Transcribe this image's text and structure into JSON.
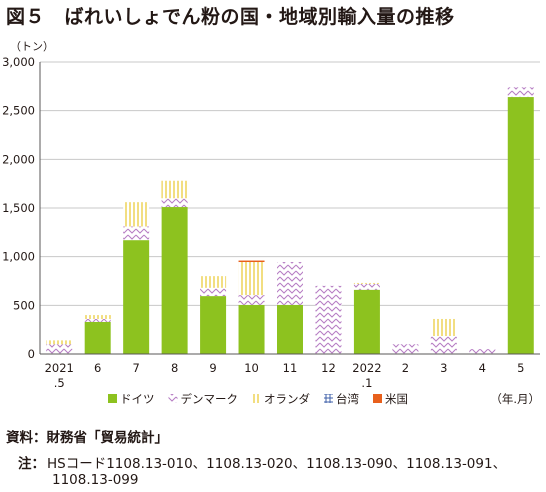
{
  "title": "図５　ばれいしょでん粉の国・地域別輸入量の推移",
  "colors": {
    "germany": "#8dc21f",
    "denmark": "#b57cc3",
    "netherlands": "#e8c21a",
    "taiwan": "#3d5fa8",
    "usa": "#e8601c",
    "grid": "#c8c8c8",
    "axis": "#595757"
  },
  "chart_data": {
    "type": "bar",
    "stacked": true,
    "unit_label": "（トン）",
    "x_unit_label": "（年.月）",
    "categories": [
      [
        "2021",
        ".5"
      ],
      [
        "6"
      ],
      [
        "7"
      ],
      [
        "8"
      ],
      [
        "9"
      ],
      [
        "10"
      ],
      [
        "11"
      ],
      [
        "12"
      ],
      [
        "2022",
        ".1"
      ],
      [
        "2"
      ],
      [
        "3"
      ],
      [
        "4"
      ],
      [
        "5"
      ]
    ],
    "ylim": [
      0,
      3000
    ],
    "yticks": [
      "0",
      "500",
      "1,000",
      "1,500",
      "2,000",
      "2,500",
      "3,000"
    ],
    "ytick_values": [
      0,
      500,
      1000,
      1500,
      2000,
      2500,
      3000
    ],
    "grid": true,
    "legend_position": "bottom",
    "series": [
      {
        "name": "ドイツ",
        "key": "germany",
        "pattern": "solid",
        "values": [
          0,
          330,
          1170,
          1510,
          595,
          505,
          505,
          0,
          660,
          0,
          0,
          0,
          2640
        ]
      },
      {
        "name": "デンマーク",
        "key": "denmark",
        "pattern": "zigzag",
        "values": [
          100,
          30,
          140,
          90,
          85,
          100,
          440,
          700,
          60,
          100,
          185,
          50,
          100
        ]
      },
      {
        "name": "オランダ",
        "key": "netherlands",
        "pattern": "vlines",
        "values": [
          40,
          40,
          250,
          180,
          120,
          340,
          0,
          0,
          10,
          0,
          175,
          0,
          0
        ]
      },
      {
        "name": "台湾",
        "key": "taiwan",
        "pattern": "grid",
        "values": [
          0,
          0,
          0,
          0,
          0,
          0,
          0,
          0,
          0,
          0,
          0,
          0,
          0
        ]
      },
      {
        "name": "米国",
        "key": "usa",
        "pattern": "solid",
        "values": [
          0,
          0,
          0,
          0,
          0,
          15,
          0,
          0,
          0,
          0,
          0,
          0,
          0
        ]
      }
    ]
  },
  "footer": {
    "source": "資料：財務省「貿易統計」",
    "note_label": "注：",
    "note_line1": "HSコード1108.13-010、1108.13-020、1108.13-090、1108.13-091、",
    "note_line2": "1108.13-099"
  }
}
